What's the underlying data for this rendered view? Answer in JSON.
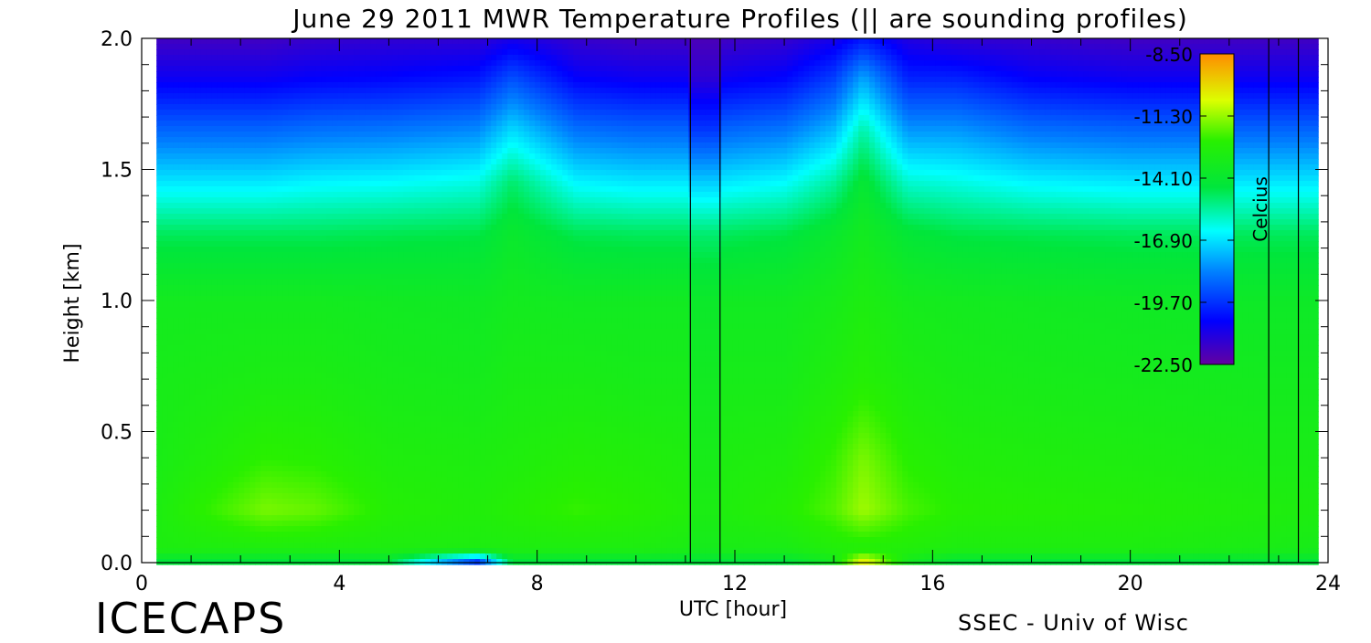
{
  "branding": {
    "left": "ICECAPS",
    "right": "SSEC - Univ of Wisc"
  },
  "chart_data": {
    "type": "heatmap",
    "title": "June 29 2011 MWR Temperature Profiles (|| are sounding profiles)",
    "xlabel": "UTC [hour]",
    "ylabel": "Height [km]",
    "xlim": [
      0,
      24
    ],
    "ylim": [
      0,
      2
    ],
    "x_ticks": [
      0,
      4,
      8,
      12,
      16,
      20,
      24
    ],
    "x_tick_labels": [
      "0",
      "4",
      "8",
      "12",
      "16",
      "20",
      "24"
    ],
    "y_ticks": [
      0.0,
      0.5,
      1.0,
      1.5,
      2.0
    ],
    "y_tick_labels": [
      "0.0",
      "0.5",
      "1.0",
      "1.5",
      "2.0"
    ],
    "data_x_range": [
      0.3,
      23.8
    ],
    "colorbar": {
      "label": "Celcius",
      "min": -22.5,
      "max": -8.5,
      "ticks": [
        -8.5,
        -11.3,
        -14.1,
        -16.9,
        -19.7,
        -22.5
      ],
      "tick_labels": [
        "-8.50",
        "-11.30",
        "-14.10",
        "-16.90",
        "-19.70",
        "-22.50"
      ]
    },
    "sounding_times": [
      11.1,
      11.7,
      22.8,
      23.4
    ],
    "hours": [
      0.3,
      2.5,
      3.5,
      5,
      6.8,
      7.5,
      8.8,
      10,
      11.7,
      13,
      14,
      14.6,
      15.5,
      16.5,
      18,
      20,
      22.8,
      23.8
    ],
    "heights_km": [
      0.0,
      0.05,
      0.2,
      0.4,
      0.7,
      1.0,
      1.25,
      1.45,
      1.65,
      1.85,
      2.0
    ],
    "temperature_profiles_c": [
      [
        -14.5,
        -13.0,
        -13.0,
        -13.2,
        -13.3,
        -13.5,
        -14.8,
        -16.8,
        -18.8,
        -20.8,
        -21.8
      ],
      [
        -14.5,
        -13.0,
        -11.6,
        -12.4,
        -13.1,
        -13.5,
        -14.8,
        -16.8,
        -18.8,
        -20.8,
        -21.8
      ],
      [
        -14.5,
        -13.0,
        -11.8,
        -12.5,
        -13.1,
        -13.5,
        -14.8,
        -16.6,
        -18.6,
        -20.6,
        -21.6
      ],
      [
        -14.5,
        -13.0,
        -12.6,
        -12.9,
        -13.3,
        -13.6,
        -14.7,
        -16.5,
        -18.5,
        -20.5,
        -21.5
      ],
      [
        -20.0,
        -13.0,
        -12.8,
        -13.0,
        -13.4,
        -13.7,
        -14.6,
        -16.2,
        -18.2,
        -20.2,
        -21.5
      ],
      [
        -14.5,
        -13.0,
        -12.6,
        -12.9,
        -13.2,
        -13.5,
        -14.0,
        -15.0,
        -17.0,
        -19.2,
        -21.0
      ],
      [
        -14.5,
        -13.0,
        -12.3,
        -12.7,
        -13.2,
        -13.6,
        -14.7,
        -16.6,
        -18.6,
        -20.6,
        -21.6
      ],
      [
        -14.5,
        -13.0,
        -12.5,
        -12.8,
        -13.3,
        -13.6,
        -14.8,
        -16.8,
        -18.8,
        -20.8,
        -21.8
      ],
      [
        -14.5,
        -13.2,
        -12.9,
        -13.0,
        -13.3,
        -13.6,
        -14.8,
        -16.8,
        -18.8,
        -20.8,
        -21.8
      ],
      [
        -14.5,
        -13.2,
        -12.6,
        -12.9,
        -13.3,
        -13.6,
        -14.6,
        -16.5,
        -18.5,
        -20.5,
        -21.6
      ],
      [
        -13.5,
        -12.8,
        -12.0,
        -12.3,
        -12.9,
        -13.3,
        -14.0,
        -15.5,
        -17.5,
        -19.5,
        -21.0
      ],
      [
        -10.0,
        -12.8,
        -11.2,
        -11.6,
        -12.6,
        -13.0,
        -13.5,
        -14.2,
        -15.6,
        -17.8,
        -20.2
      ],
      [
        -13.5,
        -12.8,
        -12.1,
        -12.5,
        -13.0,
        -13.4,
        -14.3,
        -16.0,
        -18.0,
        -20.0,
        -21.2
      ],
      [
        -14.5,
        -13.0,
        -12.5,
        -12.8,
        -13.2,
        -13.5,
        -14.6,
        -16.2,
        -18.0,
        -20.0,
        -21.5
      ],
      [
        -14.5,
        -13.0,
        -12.6,
        -12.9,
        -13.3,
        -13.6,
        -14.7,
        -16.6,
        -18.6,
        -20.6,
        -21.6
      ],
      [
        -14.5,
        -13.0,
        -12.7,
        -13.0,
        -13.4,
        -13.7,
        -14.8,
        -16.8,
        -18.8,
        -20.8,
        -21.8
      ],
      [
        -14.5,
        -13.2,
        -12.9,
        -13.2,
        -13.5,
        -13.8,
        -14.8,
        -16.8,
        -18.8,
        -20.8,
        -21.8
      ],
      [
        -14.5,
        -13.3,
        -13.0,
        -13.2,
        -13.5,
        -13.8,
        -14.8,
        -16.8,
        -18.8,
        -20.8,
        -21.8
      ]
    ],
    "sounding_gap_profile_c": [
      -14.5,
      -13.4,
      -13.1,
      -13.3,
      -13.6,
      -13.9,
      -15.0,
      -17.2,
      -19.6,
      -21.4,
      -22.0
    ]
  }
}
